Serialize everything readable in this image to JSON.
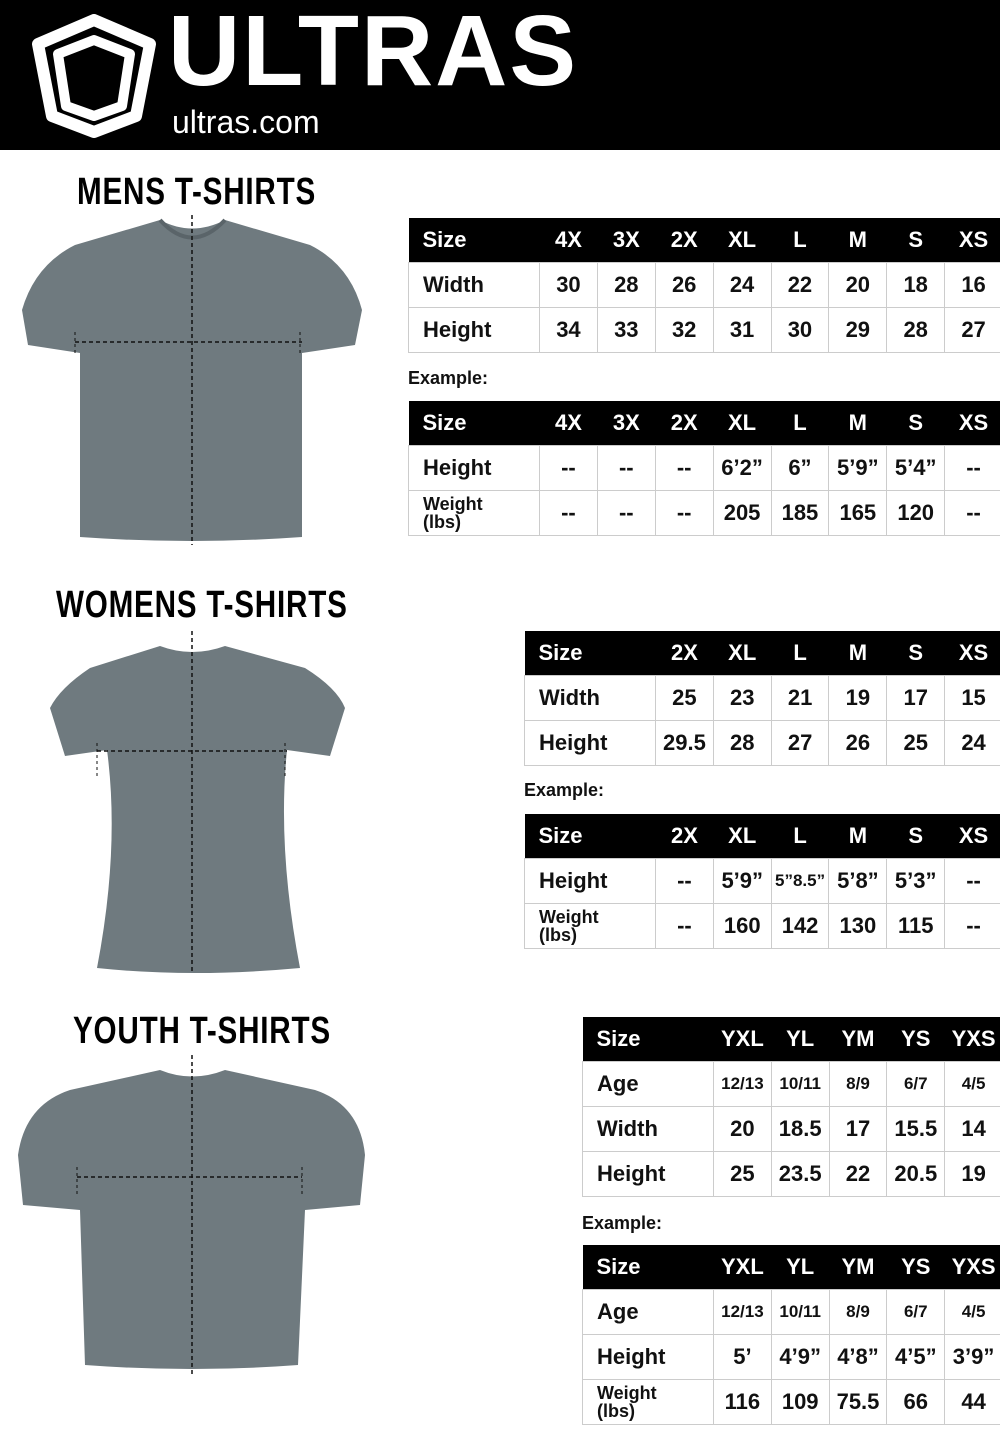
{
  "header": {
    "brand": "ULTRAS",
    "site": "ultras.com",
    "logo_icon": "shield-icon",
    "background": "#000000"
  },
  "example_label": "Example:",
  "sections": [
    {
      "id": "mens",
      "title": "MENS T-SHIRTS",
      "size_table": {
        "header": [
          "Size",
          "4X",
          "3X",
          "2X",
          "XL",
          "L",
          "M",
          "S",
          "XS"
        ],
        "rows": [
          [
            "Width",
            "30",
            "28",
            "26",
            "24",
            "22",
            "20",
            "18",
            "16"
          ],
          [
            "Height",
            "34",
            "33",
            "32",
            "31",
            "30",
            "29",
            "28",
            "27"
          ]
        ]
      },
      "example_table": {
        "header": [
          "Size",
          "4X",
          "3X",
          "2X",
          "XL",
          "L",
          "M",
          "S",
          "XS"
        ],
        "rows": [
          [
            "Height",
            "--",
            "--",
            "--",
            "6’2”",
            "6”",
            "5’9”",
            "5’4”",
            "--"
          ],
          [
            "Weight (lbs)",
            "--",
            "--",
            "--",
            "205",
            "185",
            "165",
            "120",
            "--"
          ]
        ]
      }
    },
    {
      "id": "womens",
      "title": "WOMENS T-SHIRTS",
      "size_table": {
        "header": [
          "Size",
          "2X",
          "XL",
          "L",
          "M",
          "S",
          "XS"
        ],
        "rows": [
          [
            "Width",
            "25",
            "23",
            "21",
            "19",
            "17",
            "15"
          ],
          [
            "Height",
            "29.5",
            "28",
            "27",
            "26",
            "25",
            "24"
          ]
        ]
      },
      "example_table": {
        "header": [
          "Size",
          "2X",
          "XL",
          "L",
          "M",
          "S",
          "XS"
        ],
        "rows": [
          [
            "Height",
            "--",
            "5’9”",
            "5”8.5”",
            "5’8”",
            "5’3”",
            "--"
          ],
          [
            "Weight (lbs)",
            "--",
            "160",
            "142",
            "130",
            "115",
            "--"
          ]
        ]
      }
    },
    {
      "id": "youth",
      "title": "YOUTH T-SHIRTS",
      "size_table": {
        "header": [
          "Size",
          "YXL",
          "YL",
          "YM",
          "YS",
          "YXS"
        ],
        "rows": [
          [
            "Age",
            "12/13",
            "10/11",
            "8/9",
            "6/7",
            "4/5"
          ],
          [
            "Width",
            "20",
            "18.5",
            "17",
            "15.5",
            "14"
          ],
          [
            "Height",
            "25",
            "23.5",
            "22",
            "20.5",
            "19"
          ]
        ]
      },
      "example_table": {
        "header": [
          "Size",
          "YXL",
          "YL",
          "YM",
          "YS",
          "YXS"
        ],
        "rows": [
          [
            "Age",
            "12/13",
            "10/11",
            "8/9",
            "6/7",
            "4/5"
          ],
          [
            "Height",
            "5’",
            "4’9”",
            "4’8”",
            "4’5”",
            "3’9”"
          ],
          [
            "Weight (lbs)",
            "116",
            "109",
            "75.5",
            "66",
            "44"
          ]
        ]
      }
    }
  ]
}
